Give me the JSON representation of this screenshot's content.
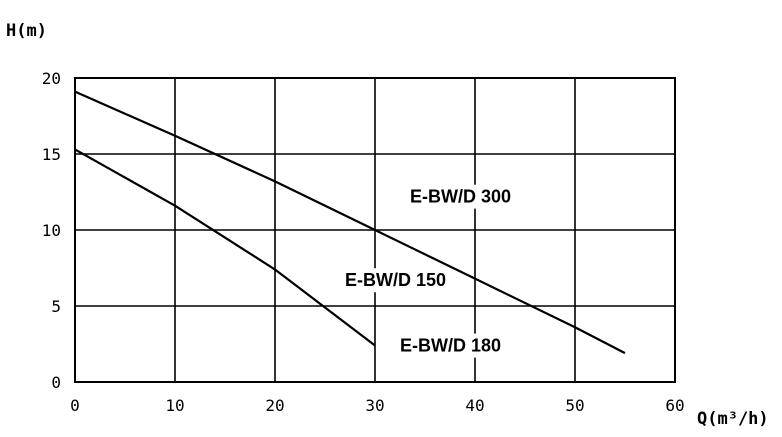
{
  "chart_data": {
    "type": "line",
    "xlabel": "Q(m³/h)",
    "ylabel": "H(m)",
    "xlim": [
      0,
      60
    ],
    "ylim": [
      0,
      20
    ],
    "x_ticks": [
      "0",
      "10",
      "20",
      "30",
      "40",
      "50",
      "60"
    ],
    "y_ticks": [
      "0",
      "5",
      "10",
      "15",
      "20"
    ],
    "grid": true,
    "series": [
      {
        "name": "E-BW/D 300",
        "x": [
          0,
          10,
          20,
          30,
          40,
          50,
          55
        ],
        "y": [
          19.1,
          16.2,
          13.2,
          10,
          6.8,
          3.6,
          1.9
        ]
      },
      {
        "name": "E-BW/D 180",
        "x": [
          0,
          10,
          20,
          30
        ],
        "y": [
          15.3,
          11.6,
          7.4,
          2.4
        ]
      }
    ],
    "annotations": [
      {
        "text": "E-BW/D 300",
        "x": 33.5,
        "y": 11.8
      },
      {
        "text": "E-BW/D 150",
        "x": 27,
        "y": 6.3
      },
      {
        "text": "E-BW/D 180",
        "x": 32.5,
        "y": 2
      }
    ]
  }
}
